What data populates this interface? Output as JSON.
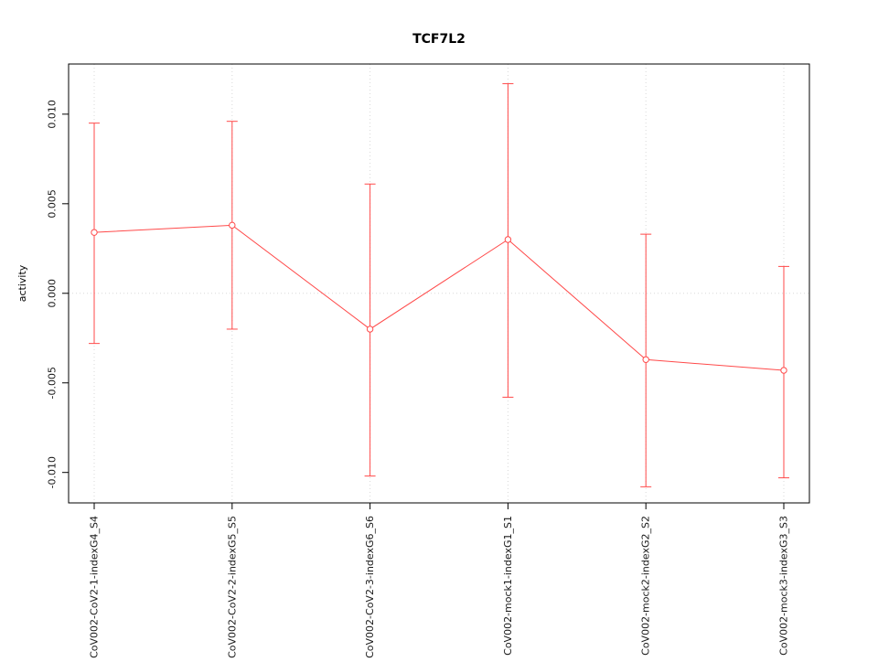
{
  "chart_data": {
    "type": "line",
    "title": "TCF7L2",
    "xlabel": "",
    "ylabel": "activity",
    "categories": [
      "CoV002-CoV2-1-indexG4_S4",
      "CoV002-CoV2-2-indexG5_S5",
      "CoV002-CoV2-3-indexG6_S6",
      "CoV002-mock1-indexG1_S1",
      "CoV002-mock2-indexG2_S2",
      "CoV002-mock3-indexG3_S3"
    ],
    "series": [
      {
        "name": "TCF7L2 activity",
        "values": [
          0.0034,
          0.0038,
          -0.002,
          0.003,
          -0.0037,
          -0.0043
        ],
        "error_high": [
          0.0095,
          0.0096,
          0.0061,
          0.0117,
          0.0033,
          0.0015
        ],
        "error_low": [
          -0.0028,
          -0.002,
          -0.0102,
          -0.0058,
          -0.0108,
          -0.0103
        ]
      }
    ],
    "ylim": [
      -0.0117,
      0.0128
    ],
    "yticks": [
      -0.01,
      -0.005,
      0.0,
      0.005,
      0.01
    ],
    "ytick_labels": [
      "-0.010",
      "-0.005",
      "0.000",
      "0.005",
      "0.010"
    ],
    "legend": "none",
    "grid": "dotted vertical line at each category; dotted horizontal line at y=0",
    "marker": "open-circle",
    "line_color": "#ff4a4a",
    "grid_color": "#d8d8d8",
    "axis_color": "#000000"
  }
}
